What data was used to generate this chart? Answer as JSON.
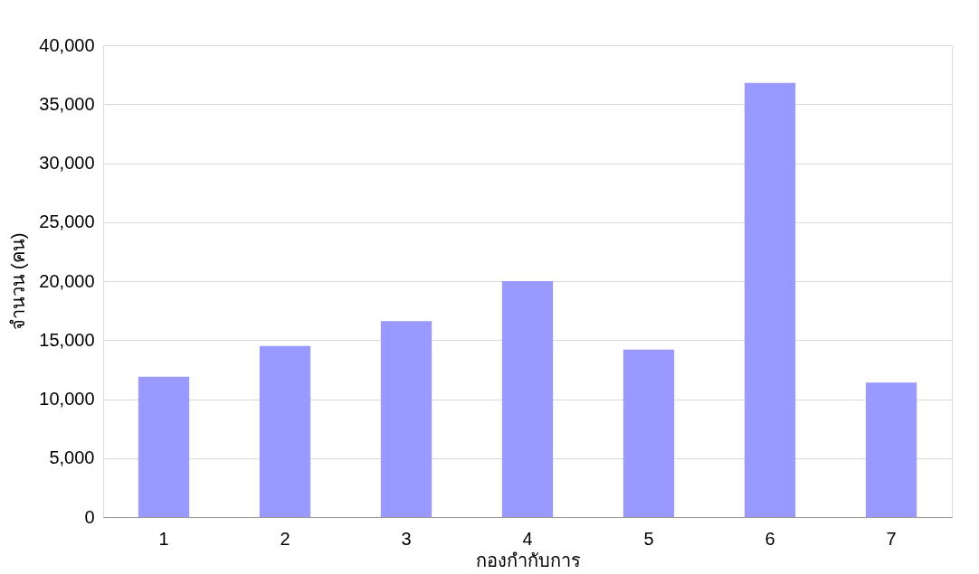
{
  "chart_data": {
    "type": "bar",
    "xlabel": "กองกำกับการ",
    "ylabel": "จำนวน (คน)",
    "categories": [
      "1",
      "2",
      "3",
      "4",
      "5",
      "6",
      "7"
    ],
    "values": [
      11900,
      14500,
      16600,
      20000,
      14200,
      36800,
      11400
    ],
    "color": "#9999ff",
    "ylim": [
      0,
      40000
    ],
    "yticks": [
      0,
      {
        "value": 5000,
        "label": "5,000"
      },
      {
        "value": 10000,
        "label": "10,000"
      },
      {
        "value": 15000,
        "label": "15,000"
      },
      {
        "value": 20000,
        "label": "20,000"
      },
      {
        "value": 25000,
        "label": "25,000"
      },
      {
        "value": 30000,
        "label": "30,000"
      },
      {
        "value": 35000,
        "label": "35,000"
      },
      {
        "value": 40000,
        "label": "40,000"
      }
    ],
    "grid": "y"
  }
}
